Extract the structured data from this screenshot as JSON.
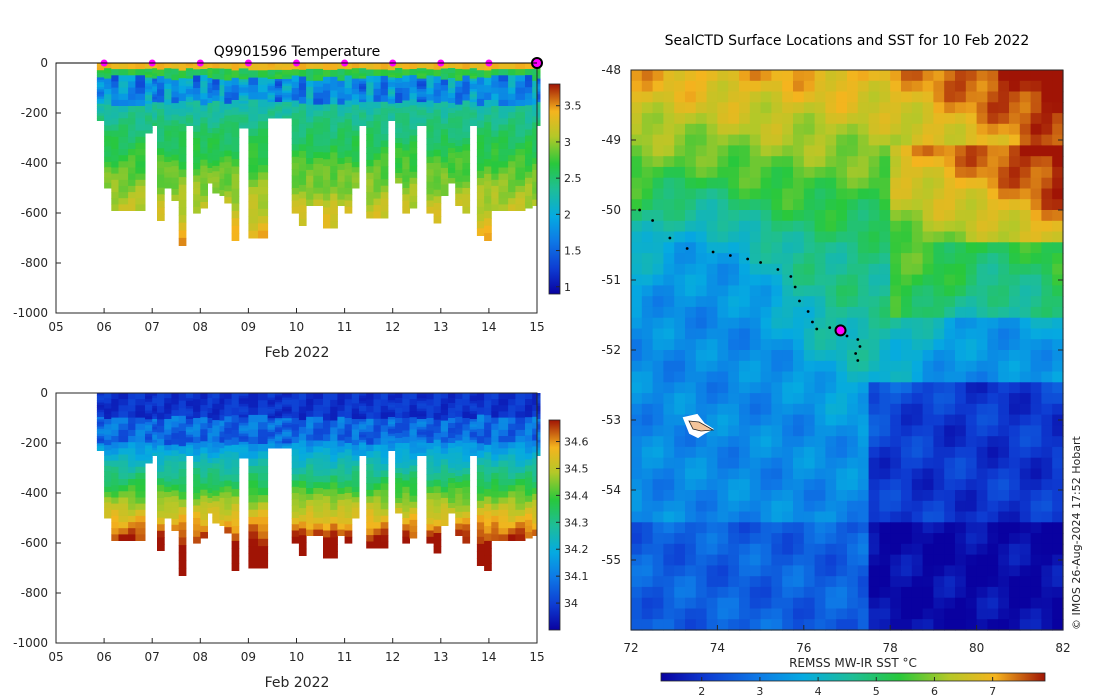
{
  "chart_data": [
    {
      "type": "heatmap",
      "name": "temperature-section",
      "title": "Q9901596  Temperature",
      "xlabel": "Feb 2022",
      "x_ticks": [
        "05",
        "06",
        "07",
        "08",
        "09",
        "10",
        "11",
        "12",
        "13",
        "14",
        "15"
      ],
      "xlim": [
        5,
        15
      ],
      "ylabel": "",
      "y_ticks": [
        "0",
        "-200",
        "-400",
        "-600",
        "-800",
        "-1000"
      ],
      "ylim": [
        -1000,
        0
      ],
      "colorbar_ticks": [
        "1",
        "1.5",
        "2",
        "2.5",
        "3",
        "3.5"
      ],
      "colorbar_range": [
        0.9,
        3.8
      ],
      "profile_days": [
        5.85,
        6.0,
        6.15,
        6.3,
        6.5,
        6.65,
        6.85,
        7.0,
        7.1,
        7.25,
        7.4,
        7.55,
        7.7,
        7.85,
        8.0,
        8.15,
        8.25,
        8.4,
        8.5,
        8.65,
        8.8,
        9.0,
        9.2,
        9.4,
        9.55,
        9.7,
        9.9,
        10.05,
        10.2,
        10.35,
        10.55,
        10.7,
        10.85,
        11.0,
        11.15,
        11.3,
        11.45,
        11.6,
        11.75,
        11.9,
        12.05,
        12.2,
        12.35,
        12.5,
        12.7,
        12.85,
        13.0,
        13.15,
        13.3,
        13.45,
        13.6,
        13.75,
        13.9,
        14.05,
        14.2,
        14.4,
        14.55,
        14.75,
        14.9,
        15.0
      ],
      "profile_depths": [
        230,
        500,
        590,
        590,
        590,
        590,
        280,
        250,
        630,
        500,
        550,
        730,
        250,
        600,
        580,
        480,
        520,
        530,
        560,
        710,
        260,
        700,
        700,
        220,
        220,
        220,
        600,
        650,
        570,
        570,
        660,
        660,
        570,
        600,
        500,
        250,
        620,
        620,
        620,
        230,
        480,
        600,
        580,
        250,
        600,
        640,
        530,
        480,
        570,
        600,
        250,
        690,
        710,
        590,
        590,
        590,
        590,
        580,
        570,
        250
      ],
      "surface_markers_days": [
        6,
        7,
        8,
        9,
        10,
        11,
        12,
        13,
        14
      ],
      "current_position_day": 15
    },
    {
      "type": "heatmap",
      "name": "salinity-section",
      "title": "",
      "xlabel": "Feb 2022",
      "x_ticks": [
        "05",
        "06",
        "07",
        "08",
        "09",
        "10",
        "11",
        "12",
        "13",
        "14",
        "15"
      ],
      "xlim": [
        5,
        15
      ],
      "y_ticks": [
        "0",
        "-200",
        "-400",
        "-600",
        "-800",
        "-1000"
      ],
      "ylim": [
        -1000,
        0
      ],
      "colorbar_ticks": [
        "34",
        "34.1",
        "34.2",
        "34.3",
        "34.4",
        "34.5",
        "34.6"
      ],
      "colorbar_range": [
        33.9,
        34.68
      ]
    },
    {
      "type": "heatmap",
      "name": "sst-map",
      "title": "SealCTD Surface Locations and SST for 10 Feb 2022",
      "x_ticks": [
        "72",
        "74",
        "76",
        "78",
        "80",
        "82"
      ],
      "xlim": [
        72,
        82
      ],
      "y_ticks": [
        "-48",
        "-49",
        "-50",
        "-51",
        "-52",
        "-53",
        "-54",
        "-55"
      ],
      "ylim": [
        -56,
        -48
      ],
      "colorbar_label": "REMSS MW-IR SST °C",
      "colorbar_ticks": [
        "2",
        "3",
        "4",
        "5",
        "6",
        "7"
      ],
      "colorbar_range": [
        1.3,
        7.9
      ],
      "track": [
        [
          72.2,
          -50.0
        ],
        [
          72.5,
          -50.15
        ],
        [
          72.9,
          -50.4
        ],
        [
          73.3,
          -50.55
        ],
        [
          73.9,
          -50.6
        ],
        [
          74.3,
          -50.65
        ],
        [
          74.7,
          -50.7
        ],
        [
          75.0,
          -50.75
        ],
        [
          75.4,
          -50.85
        ],
        [
          75.7,
          -50.95
        ],
        [
          75.8,
          -51.1
        ],
        [
          75.9,
          -51.3
        ],
        [
          76.1,
          -51.45
        ],
        [
          76.2,
          -51.6
        ],
        [
          76.3,
          -51.7
        ],
        [
          76.6,
          -51.68
        ],
        [
          76.8,
          -51.75
        ],
        [
          77.0,
          -51.8
        ],
        [
          77.25,
          -51.85
        ],
        [
          77.3,
          -51.95
        ],
        [
          77.2,
          -52.05
        ],
        [
          77.25,
          -52.15
        ]
      ],
      "current_position": [
        76.85,
        -51.72
      ],
      "caption": "© IMOS 26-Aug-2024 17:52 Hobart"
    }
  ]
}
